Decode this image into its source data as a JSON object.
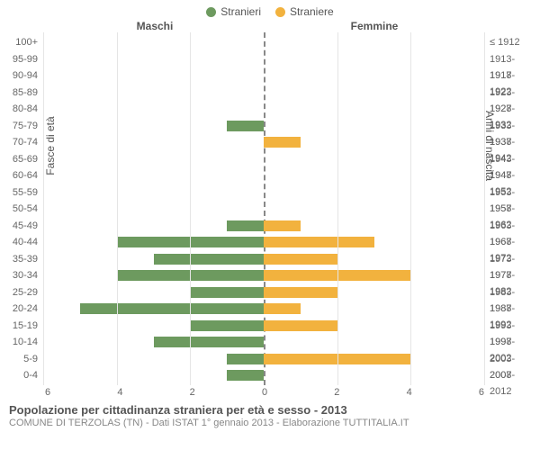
{
  "legend": {
    "male": {
      "label": "Stranieri",
      "color": "#6d9a5f"
    },
    "female": {
      "label": "Straniere",
      "color": "#f2b23e"
    }
  },
  "headers": {
    "left": "Maschi",
    "right": "Femmine"
  },
  "axis_labels": {
    "left": "Fasce di età",
    "right": "Anni di nascita"
  },
  "y_left": [
    "100+",
    "95-99",
    "90-94",
    "85-89",
    "80-84",
    "75-79",
    "70-74",
    "65-69",
    "60-64",
    "55-59",
    "50-54",
    "45-49",
    "40-44",
    "35-39",
    "30-34",
    "25-29",
    "20-24",
    "15-19",
    "10-14",
    "5-9",
    "0-4"
  ],
  "y_right": [
    "≤ 1912",
    "1913-1917",
    "1918-1922",
    "1923-1927",
    "1928-1932",
    "1933-1937",
    "1938-1942",
    "1943-1947",
    "1948-1952",
    "1953-1957",
    "1958-1962",
    "1963-1967",
    "1968-1972",
    "1973-1977",
    "1978-1982",
    "1983-1987",
    "1988-1992",
    "1993-1997",
    "1998-2002",
    "2003-2007",
    "2008-2012"
  ],
  "x_ticks": [
    6,
    4,
    2,
    0,
    2,
    4,
    6
  ],
  "x_max": 6,
  "bars": {
    "male": [
      0,
      0,
      0,
      0,
      0,
      1,
      0,
      0,
      0,
      0,
      0,
      1,
      4,
      3,
      4,
      2,
      5,
      2,
      3,
      1,
      1
    ],
    "female": [
      0,
      0,
      0,
      0,
      0,
      0,
      1,
      0,
      0,
      0,
      0,
      1,
      3,
      2,
      4,
      2,
      1,
      2,
      0,
      4,
      0
    ]
  },
  "colors": {
    "male_bar": "#6d9a5f",
    "female_bar": "#f2b23e",
    "grid": "#e5e5e5",
    "center_dash": "#888888",
    "text": "#555555",
    "subtext": "#888888",
    "background": "#ffffff"
  },
  "footer": {
    "title": "Popolazione per cittadinanza straniera per età e sesso - 2013",
    "subtitle": "COMUNE DI TERZOLAS (TN) - Dati ISTAT 1° gennaio 2013 - Elaborazione TUTTITALIA.IT"
  }
}
